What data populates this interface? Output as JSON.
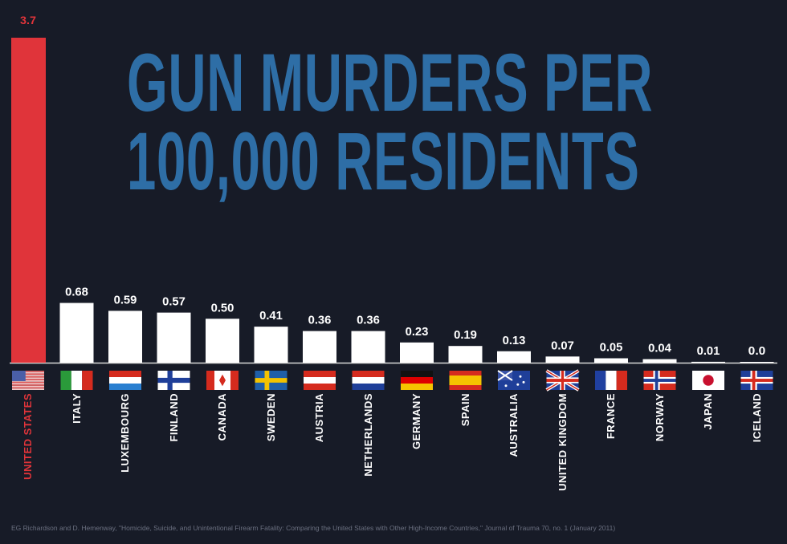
{
  "title_line1": "GUN MURDERS PER",
  "title_line2": "100,000 RESIDENTS",
  "source": "EG Richardson and D. Hemenway, \"Homicide, Suicide, and Unintentional Firearm Fatality: Comparing the United States with Other High-Income Countries,\" Journal of Trauma 70, no. 1 (January 2011)",
  "colors": {
    "background": "#171b27",
    "highlight": "#e0343a",
    "bar": "#ffffff",
    "title": "#2e6ea6"
  },
  "chart_data": {
    "type": "bar",
    "title": "GUN MURDERS PER 100,000 RESIDENTS",
    "categories": [
      "UNITED STATES",
      "ITALY",
      "LUXEMBOURG",
      "FINLAND",
      "CANADA",
      "SWEDEN",
      "AUSTRIA",
      "NETHERLANDS",
      "GERMANY",
      "SPAIN",
      "AUSTRALIA",
      "UNITED KINGDOM",
      "FRANCE",
      "NORWAY",
      "JAPAN",
      "ICELAND"
    ],
    "values": [
      3.7,
      0.68,
      0.59,
      0.57,
      0.5,
      0.41,
      0.36,
      0.36,
      0.23,
      0.19,
      0.13,
      0.07,
      0.05,
      0.04,
      0.01,
      0.0
    ],
    "value_labels": [
      "3.7",
      "0.68",
      "0.59",
      "0.57",
      "0.50",
      "0.41",
      "0.36",
      "0.36",
      "0.23",
      "0.19",
      "0.13",
      "0.07",
      "0.05",
      "0.04",
      "0.01",
      "0.0"
    ],
    "flags": [
      "us",
      "it",
      "lu",
      "fi",
      "ca",
      "se",
      "at",
      "nl",
      "de",
      "es",
      "au",
      "gb",
      "fr",
      "no",
      "jp",
      "is"
    ],
    "highlight_index": 0,
    "ylim": [
      0,
      3.7
    ],
    "xlabel": "",
    "ylabel": "",
    "grid": false
  }
}
